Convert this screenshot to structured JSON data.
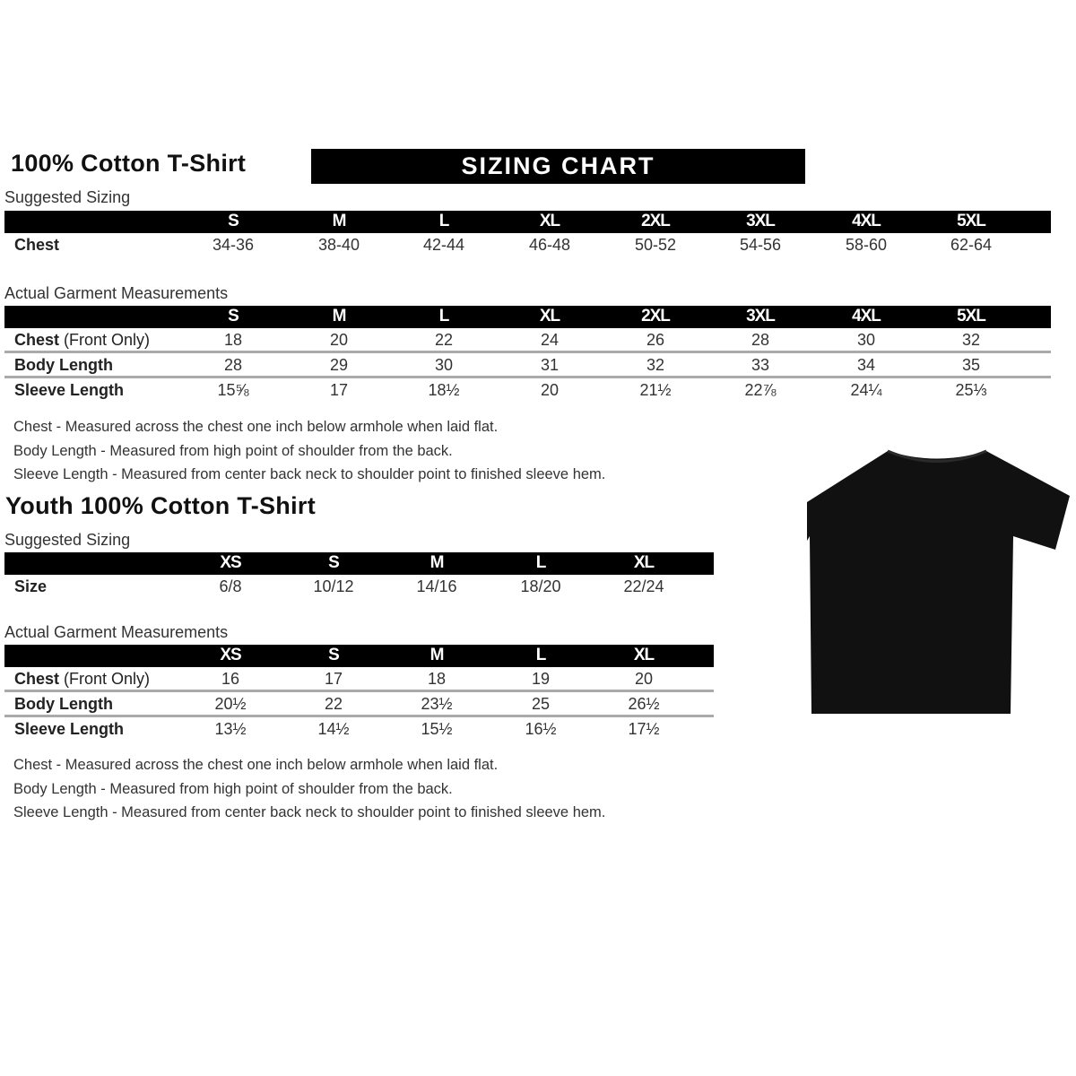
{
  "adult": {
    "title": "100% Cotton T-Shirt",
    "banner": "SIZING CHART",
    "suggested_label": "Suggested Sizing",
    "sizes": [
      "S",
      "M",
      "L",
      "XL",
      "2XL",
      "3XL",
      "4XL",
      "5XL"
    ],
    "suggested_rows": [
      {
        "label": "Chest",
        "values": [
          "34-36",
          "38-40",
          "42-44",
          "46-48",
          "50-52",
          "54-56",
          "58-60",
          "62-64"
        ]
      }
    ],
    "actual_label": "Actual Garment Measurements",
    "actual_rows": [
      {
        "label": "Chest",
        "label_note": "(Front Only)",
        "values": [
          "18",
          "20",
          "22",
          "24",
          "26",
          "28",
          "30",
          "32"
        ]
      },
      {
        "label": "Body Length",
        "label_note": "",
        "values": [
          "28",
          "29",
          "30",
          "31",
          "32",
          "33",
          "34",
          "35"
        ]
      },
      {
        "label": "Sleeve Length",
        "label_note": "",
        "values": [
          "15⅝",
          "17",
          "18½",
          "20",
          "21½",
          "22⅞",
          "24¼",
          "25⅓"
        ]
      }
    ],
    "notes": [
      "Chest - Measured across the chest one inch below armhole when laid flat.",
      "Body Length - Measured from high point of shoulder from the back.",
      "Sleeve Length - Measured from center back neck to shoulder point to finished sleeve hem."
    ]
  },
  "youth": {
    "title": "Youth 100% Cotton T-Shirt",
    "suggested_label": "Suggested Sizing",
    "sizes": [
      "XS",
      "S",
      "M",
      "L",
      "XL"
    ],
    "suggested_rows": [
      {
        "label": "Size",
        "values": [
          "6/8",
          "10/12",
          "14/16",
          "18/20",
          "22/24"
        ]
      }
    ],
    "actual_label": "Actual Garment Measurements",
    "actual_rows": [
      {
        "label": "Chest",
        "label_note": "(Front Only)",
        "values": [
          "16",
          "17",
          "18",
          "19",
          "20"
        ]
      },
      {
        "label": "Body Length",
        "label_note": "",
        "values": [
          "20½",
          "22",
          "23½",
          "25",
          "26½"
        ]
      },
      {
        "label": "Sleeve Length",
        "label_note": "",
        "values": [
          "13½",
          "14½",
          "15½",
          "16½",
          "17½"
        ]
      }
    ],
    "notes": [
      "Chest - Measured across the chest one inch below armhole when laid flat.",
      "Body Length - Measured from high point of shoulder from the back.",
      "Sleeve Length - Measured from center back neck to shoulder point to finished sleeve hem."
    ]
  },
  "colors": {
    "header": "#000000",
    "shirt": "#111111",
    "divider": "#aaaaaa"
  }
}
